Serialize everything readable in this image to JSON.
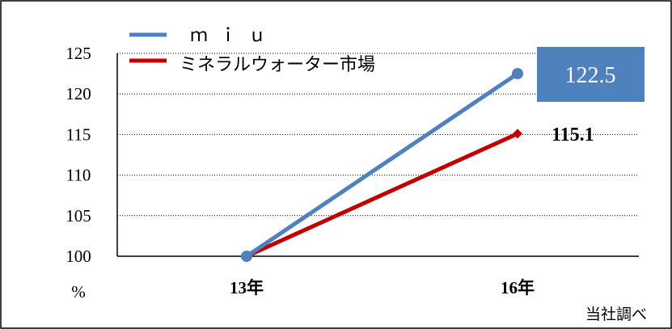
{
  "chart_data": {
    "type": "line",
    "categories": [
      "13年",
      "16年"
    ],
    "series": [
      {
        "name": "ｍｉｕ",
        "values": [
          100,
          122.5
        ],
        "color": "#4f81bd",
        "marker": "circle"
      },
      {
        "name": "ミネラルウォーター市場",
        "values": [
          100,
          115.1
        ],
        "color": "#c00000",
        "marker": "diamond"
      }
    ],
    "ylim": [
      100,
      125
    ],
    "yticks": [
      100,
      105,
      110,
      115,
      120,
      125
    ],
    "ylabel": "%",
    "grid": true,
    "legend_position": "top-left",
    "data_labels": [
      "122.5",
      "115.1"
    ],
    "data_label_box_color": "#4f81bd",
    "source_note": "当社調べ"
  }
}
